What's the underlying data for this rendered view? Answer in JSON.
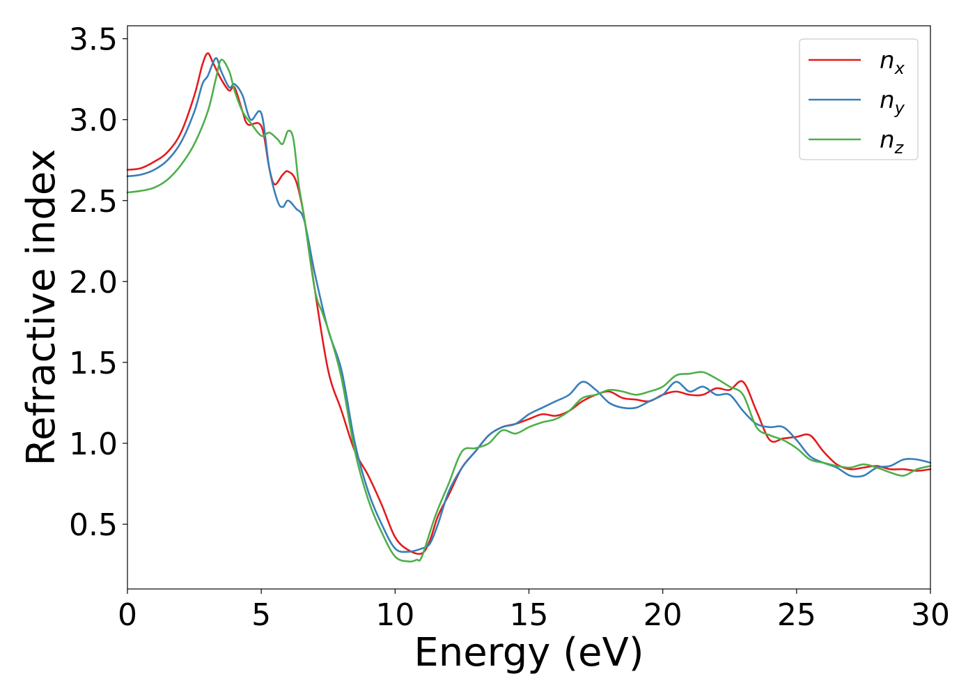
{
  "chart_data": {
    "type": "line",
    "title": "",
    "xlabel": "Energy (eV)",
    "ylabel": "Refractive index",
    "xlim": [
      0,
      30
    ],
    "ylim": [
      0.1,
      3.58
    ],
    "xticks": [
      0,
      5,
      10,
      15,
      20,
      25,
      30
    ],
    "xtick_labels": [
      "0",
      "5",
      "10",
      "15",
      "20",
      "25",
      "30"
    ],
    "yticks": [
      0.5,
      1.0,
      1.5,
      2.0,
      2.5,
      3.0,
      3.5
    ],
    "ytick_labels": [
      "0.5",
      "1.0",
      "1.5",
      "2.0",
      "2.5",
      "3.0",
      "3.5"
    ],
    "grid": false,
    "legend_position": "top-right",
    "series": [
      {
        "name": "n_x",
        "legend_base": "n",
        "legend_sub": "x",
        "color": "#e41a1c",
        "x": [
          0,
          0.5,
          1.0,
          1.5,
          2.0,
          2.5,
          2.8,
          3.0,
          3.2,
          3.5,
          3.8,
          4.0,
          4.3,
          4.5,
          5.0,
          5.3,
          5.5,
          5.8,
          6.0,
          6.3,
          6.6,
          7.0,
          7.5,
          8.0,
          8.5,
          9.0,
          9.5,
          10.0,
          10.5,
          11.0,
          11.3,
          11.6,
          12.0,
          12.5,
          13.0,
          13.5,
          14.0,
          14.5,
          15.0,
          15.5,
          16.0,
          16.5,
          17.0,
          17.5,
          18.0,
          18.5,
          19.0,
          19.5,
          20.0,
          20.5,
          21.0,
          21.5,
          22.0,
          22.5,
          23.0,
          23.5,
          24.0,
          24.5,
          25.0,
          25.5,
          26.0,
          26.5,
          27.0,
          27.5,
          28.0,
          28.5,
          29.0,
          29.5,
          30.0
        ],
        "y": [
          2.69,
          2.7,
          2.74,
          2.8,
          2.92,
          3.15,
          3.34,
          3.41,
          3.35,
          3.25,
          3.18,
          3.2,
          3.05,
          2.97,
          2.96,
          2.7,
          2.6,
          2.66,
          2.68,
          2.62,
          2.4,
          1.95,
          1.45,
          1.2,
          0.95,
          0.8,
          0.62,
          0.42,
          0.34,
          0.32,
          0.4,
          0.55,
          0.68,
          0.85,
          0.95,
          1.05,
          1.1,
          1.12,
          1.15,
          1.18,
          1.17,
          1.2,
          1.26,
          1.3,
          1.32,
          1.28,
          1.27,
          1.26,
          1.3,
          1.32,
          1.3,
          1.3,
          1.34,
          1.33,
          1.38,
          1.2,
          1.02,
          1.03,
          1.04,
          1.05,
          0.95,
          0.87,
          0.84,
          0.85,
          0.86,
          0.84,
          0.84,
          0.83,
          0.84
        ]
      },
      {
        "name": "n_y",
        "legend_base": "n",
        "legend_sub": "y",
        "color": "#377eb8",
        "x": [
          0,
          0.5,
          1.0,
          1.5,
          2.0,
          2.5,
          2.8,
          3.0,
          3.3,
          3.5,
          3.8,
          4.0,
          4.3,
          4.6,
          5.0,
          5.3,
          5.6,
          5.8,
          6.0,
          6.3,
          6.6,
          7.0,
          7.5,
          8.0,
          8.5,
          9.0,
          9.5,
          10.0,
          10.5,
          11.0,
          11.3,
          11.6,
          12.0,
          12.5,
          13.0,
          13.5,
          14.0,
          14.5,
          15.0,
          15.5,
          16.0,
          16.5,
          17.0,
          17.5,
          18.0,
          18.5,
          19.0,
          19.5,
          20.0,
          20.5,
          21.0,
          21.5,
          22.0,
          22.5,
          23.0,
          23.5,
          24.0,
          24.5,
          25.0,
          25.5,
          26.0,
          26.5,
          27.0,
          27.5,
          28.0,
          28.5,
          29.0,
          29.5,
          30.0
        ],
        "y": [
          2.65,
          2.66,
          2.69,
          2.75,
          2.86,
          3.05,
          3.22,
          3.27,
          3.38,
          3.3,
          3.2,
          3.22,
          3.15,
          3.0,
          3.04,
          2.7,
          2.5,
          2.46,
          2.5,
          2.45,
          2.38,
          2.05,
          1.7,
          1.45,
          1.0,
          0.7,
          0.5,
          0.35,
          0.33,
          0.35,
          0.38,
          0.5,
          0.7,
          0.85,
          0.95,
          1.05,
          1.1,
          1.12,
          1.18,
          1.22,
          1.26,
          1.3,
          1.38,
          1.33,
          1.25,
          1.22,
          1.22,
          1.26,
          1.3,
          1.38,
          1.32,
          1.35,
          1.3,
          1.3,
          1.2,
          1.12,
          1.1,
          1.1,
          1.02,
          0.92,
          0.88,
          0.85,
          0.8,
          0.8,
          0.85,
          0.86,
          0.9,
          0.9,
          0.88
        ]
      },
      {
        "name": "n_z",
        "legend_base": "n",
        "legend_sub": "z",
        "color": "#4daf4a",
        "x": [
          0,
          0.5,
          1.0,
          1.5,
          2.0,
          2.5,
          3.0,
          3.3,
          3.5,
          3.8,
          4.0,
          4.3,
          4.6,
          5.0,
          5.3,
          5.6,
          5.8,
          6.0,
          6.2,
          6.4,
          6.6,
          7.0,
          7.3,
          7.6,
          8.0,
          8.5,
          9.0,
          9.5,
          10.0,
          10.5,
          10.8,
          11.0,
          11.5,
          12.0,
          12.5,
          13.0,
          13.5,
          14.0,
          14.5,
          15.0,
          15.5,
          16.0,
          16.5,
          17.0,
          17.5,
          18.0,
          18.5,
          19.0,
          19.5,
          20.0,
          20.5,
          21.0,
          21.5,
          22.0,
          22.5,
          23.0,
          23.5,
          24.0,
          24.5,
          25.0,
          25.5,
          26.0,
          26.5,
          27.0,
          27.5,
          28.0,
          28.5,
          29.0,
          29.5,
          30.0
        ],
        "y": [
          2.55,
          2.56,
          2.58,
          2.63,
          2.72,
          2.85,
          3.05,
          3.25,
          3.37,
          3.3,
          3.18,
          3.05,
          2.98,
          2.9,
          2.92,
          2.88,
          2.85,
          2.93,
          2.88,
          2.6,
          2.4,
          1.95,
          1.8,
          1.65,
          1.4,
          0.95,
          0.65,
          0.45,
          0.3,
          0.27,
          0.28,
          0.3,
          0.55,
          0.75,
          0.95,
          0.97,
          1.0,
          1.08,
          1.06,
          1.1,
          1.13,
          1.15,
          1.2,
          1.28,
          1.3,
          1.33,
          1.32,
          1.3,
          1.32,
          1.35,
          1.42,
          1.43,
          1.44,
          1.4,
          1.35,
          1.3,
          1.1,
          1.05,
          1.02,
          0.97,
          0.9,
          0.88,
          0.86,
          0.85,
          0.87,
          0.85,
          0.82,
          0.8,
          0.84,
          0.86
        ]
      }
    ]
  }
}
